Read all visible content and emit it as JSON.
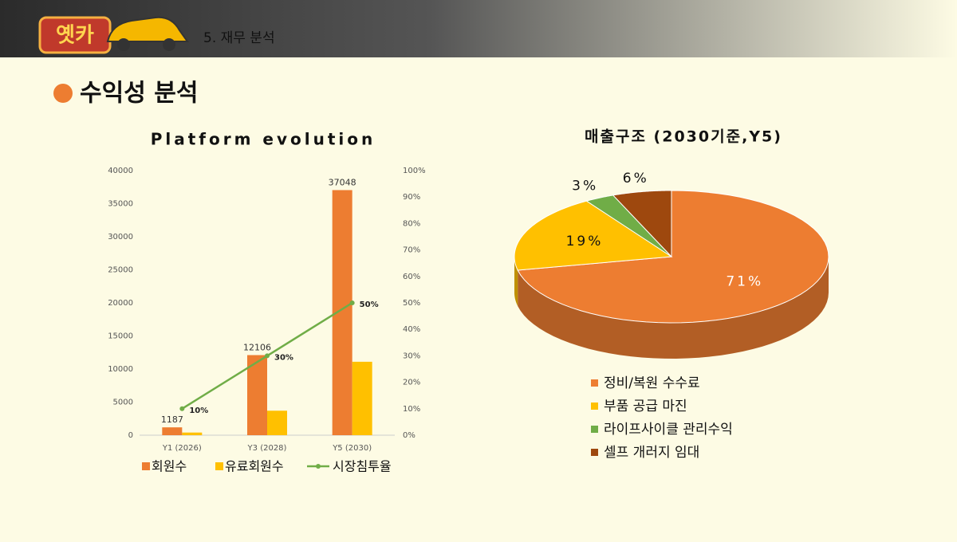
{
  "header": {
    "logo": "옛카",
    "section": "5. 재무 분석",
    "heading": "수익성 분석"
  },
  "chart_data": [
    {
      "type": "bar",
      "title": "Platform evolution",
      "categories": [
        "Y1 (2026)",
        "Y3 (2028)",
        "Y5 (2030)"
      ],
      "series": [
        {
          "name": "회원수",
          "color": "#ED7D31",
          "values": [
            1187,
            12106,
            37048
          ]
        },
        {
          "name": "유료회원수",
          "color": "#FFC000",
          "values": [
            400,
            3700,
            11100
          ]
        },
        {
          "name": "시장침투율",
          "type": "line",
          "axis": "y2",
          "color": "#70AD47",
          "values": [
            10,
            30,
            50
          ],
          "value_labels": [
            "10%",
            "30%",
            "50%"
          ]
        }
      ],
      "ylim": [
        0,
        40000
      ],
      "yticks": [
        0,
        5000,
        10000,
        15000,
        20000,
        25000,
        30000,
        35000,
        40000
      ],
      "y2lim": [
        0,
        100
      ],
      "y2ticks": [
        {
          "value": 0,
          "label": "0%"
        },
        {
          "value": 10,
          "label": "10%"
        },
        {
          "value": 20,
          "label": "20%"
        },
        {
          "value": 30,
          "label": "30%"
        },
        {
          "value": 40,
          "label": "40%"
        },
        {
          "value": 50,
          "label": "50%"
        },
        {
          "value": 60,
          "label": "60%"
        },
        {
          "value": 70,
          "label": "70%"
        },
        {
          "value": 80,
          "label": "80%"
        },
        {
          "value": 90,
          "label": "90%"
        },
        {
          "value": 100,
          "label": "100%"
        }
      ],
      "grid": false,
      "legend": "bottom"
    },
    {
      "type": "pie",
      "title": "매출구조 (2030기준,Y5)",
      "categories": [
        "정비/복원 수수료",
        "부품 공급 마진",
        "라이프사이클 관리수익",
        "셀프 개러지 임대"
      ],
      "values": [
        71,
        19,
        3,
        6
      ],
      "value_labels": [
        "71%",
        "19%",
        "3%",
        "6%"
      ],
      "colors": [
        "#ED7D31",
        "#FFC000",
        "#70AD47",
        "#9E480E"
      ],
      "legend": "bottom"
    }
  ]
}
